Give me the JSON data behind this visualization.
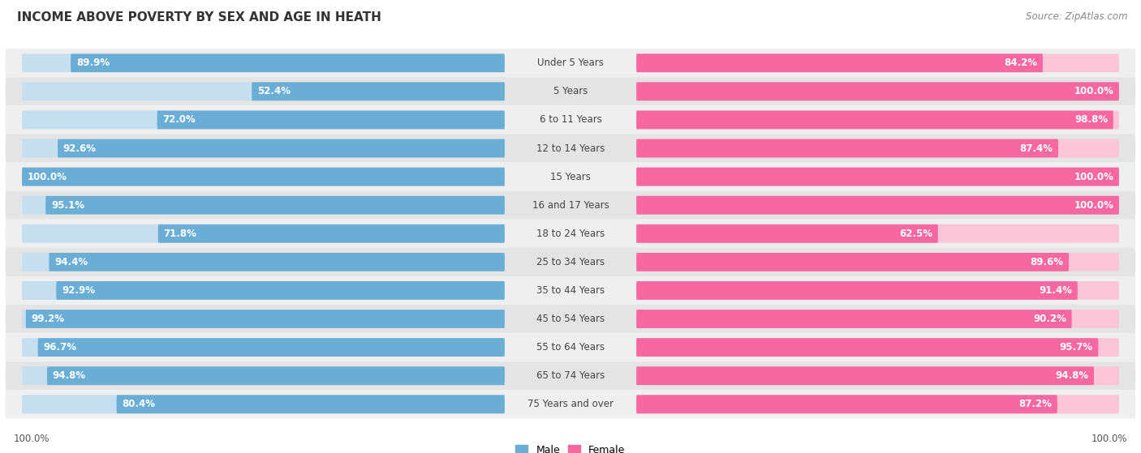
{
  "title": "INCOME ABOVE POVERTY BY SEX AND AGE IN HEATH",
  "source": "Source: ZipAtlas.com",
  "categories": [
    "Under 5 Years",
    "5 Years",
    "6 to 11 Years",
    "12 to 14 Years",
    "15 Years",
    "16 and 17 Years",
    "18 to 24 Years",
    "25 to 34 Years",
    "35 to 44 Years",
    "45 to 54 Years",
    "55 to 64 Years",
    "65 to 74 Years",
    "75 Years and over"
  ],
  "male_values": [
    89.9,
    52.4,
    72.0,
    92.6,
    100.0,
    95.1,
    71.8,
    94.4,
    92.9,
    99.2,
    96.7,
    94.8,
    80.4
  ],
  "female_values": [
    84.2,
    100.0,
    98.8,
    87.4,
    100.0,
    100.0,
    62.5,
    89.6,
    91.4,
    90.2,
    95.7,
    94.8,
    87.2
  ],
  "male_color": "#6aaed6",
  "male_color_light": "#c6dff0",
  "female_color": "#f768a1",
  "female_color_light": "#fcc5d8",
  "male_label": "Male",
  "female_label": "Female",
  "row_bg_odd": "#efefef",
  "row_bg_even": "#e4e4e4",
  "title_fontsize": 11,
  "value_fontsize": 8.5,
  "cat_fontsize": 8.5,
  "source_fontsize": 8.5,
  "legend_fontsize": 9,
  "max_value": 100.0
}
